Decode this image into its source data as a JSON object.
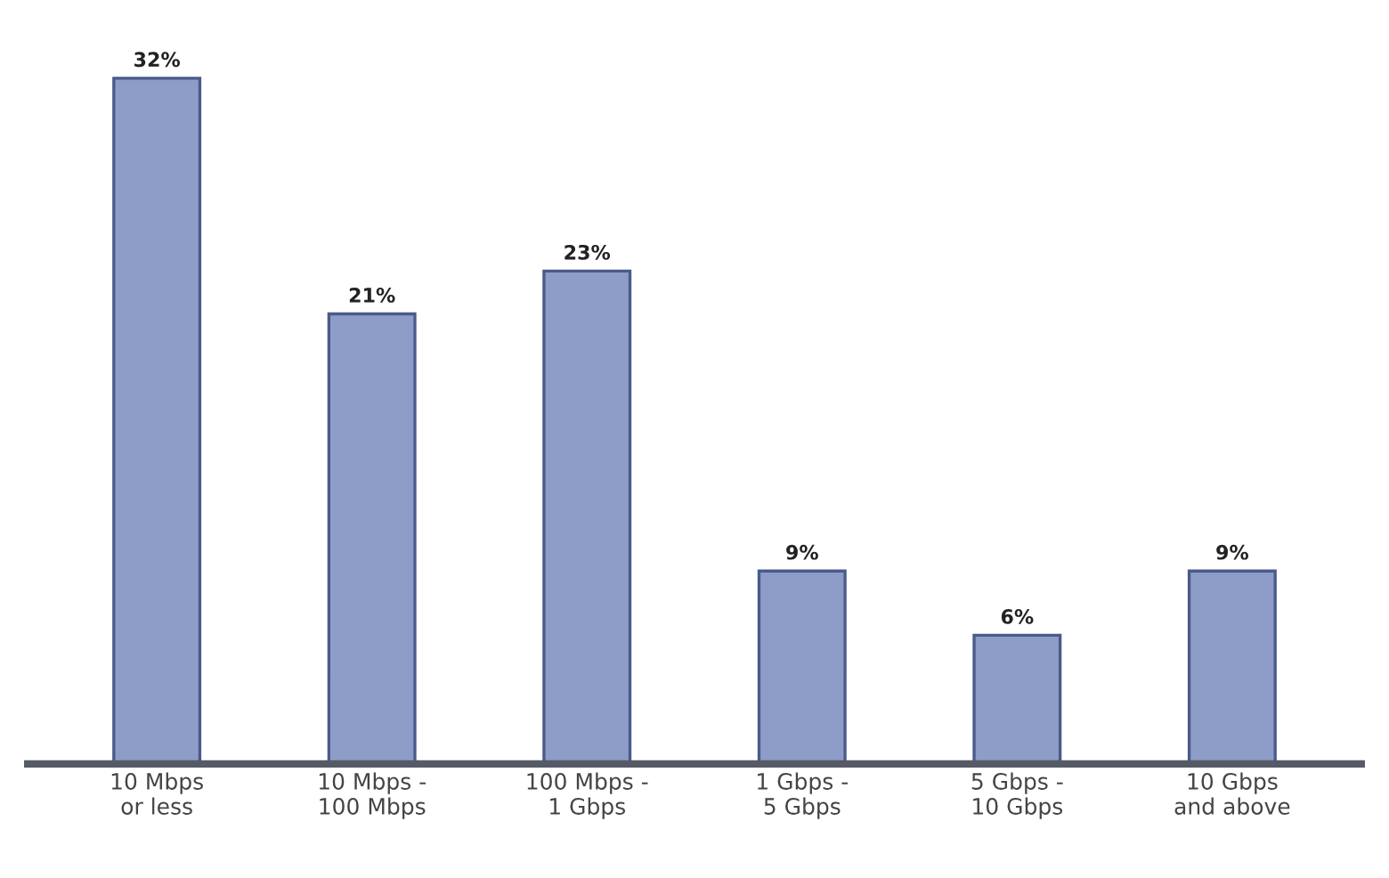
{
  "chart_data": {
    "type": "bar",
    "categories": [
      "10 Mbps\nor less",
      "10 Mbps -\n100 Mbps",
      "100 Mbps -\n1 Gbps",
      "1 Gbps -\n5 Gbps",
      "5 Gbps -\n10 Gbps",
      "10 Gbps\nand above"
    ],
    "values": [
      32,
      21,
      23,
      9,
      6,
      9
    ],
    "value_labels": [
      "32%",
      "21%",
      "23%",
      "9%",
      "6%",
      "9%"
    ],
    "color": "#8d9dc8",
    "tick_labels": "x",
    "grid": false,
    "legend": false
  }
}
